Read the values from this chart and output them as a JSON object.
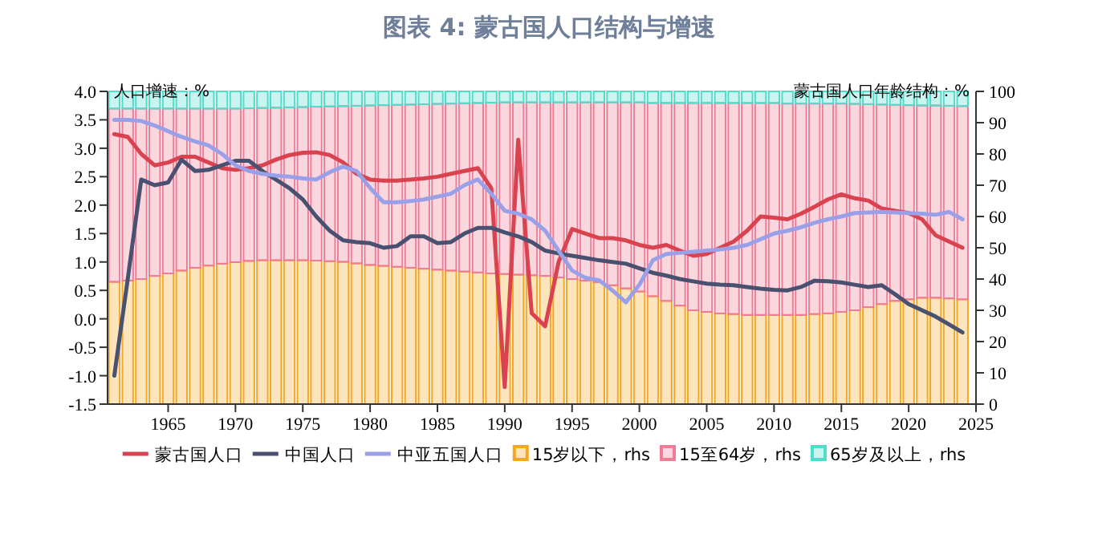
{
  "chart_data": {
    "type": "bar",
    "title": "图表 4: 蒙古国人口结构与增速",
    "ylabel": "人口增速：%",
    "y2label": "蒙古国人口年龄结构：%",
    "x": [
      1961,
      1962,
      1963,
      1964,
      1965,
      1966,
      1967,
      1968,
      1969,
      1970,
      1971,
      1972,
      1973,
      1974,
      1975,
      1976,
      1977,
      1978,
      1979,
      1980,
      1981,
      1982,
      1983,
      1984,
      1985,
      1986,
      1987,
      1988,
      1989,
      1990,
      1991,
      1992,
      1993,
      1994,
      1995,
      1996,
      1997,
      1998,
      1999,
      2000,
      2001,
      2002,
      2003,
      2004,
      2005,
      2006,
      2007,
      2008,
      2009,
      2010,
      2011,
      2012,
      2013,
      2014,
      2015,
      2016,
      2017,
      2018,
      2019,
      2020,
      2021,
      2022,
      2023,
      2024
    ],
    "xlim": [
      1960.5,
      2025
    ],
    "xticks": [
      1965,
      1970,
      1975,
      1980,
      1985,
      1990,
      1995,
      2000,
      2005,
      2010,
      2015,
      2020,
      2025
    ],
    "ylim": [
      -1.5,
      4.0
    ],
    "yticks": [
      {
        "value": -1.5,
        "label": "-1.5"
      },
      {
        "value": -1.0,
        "label": "-1.0"
      },
      {
        "value": -0.5,
        "label": "-0.5"
      },
      {
        "value": 0,
        "label": "0.0"
      },
      {
        "value": 0.5,
        "label": "0.5"
      },
      {
        "value": 1.0,
        "label": "1.0"
      },
      {
        "value": 1.5,
        "label": "1.5"
      },
      {
        "value": 2.0,
        "label": "2.0"
      },
      {
        "value": 2.5,
        "label": "2.5"
      },
      {
        "value": 3.0,
        "label": "3.0"
      },
      {
        "value": 3.5,
        "label": "3.5"
      },
      {
        "value": 4.0,
        "label": "4.0"
      }
    ],
    "y2lim": [
      0,
      100
    ],
    "y2ticks": [
      0,
      10,
      20,
      30,
      40,
      50,
      60,
      70,
      80,
      90,
      100
    ],
    "stacked": true,
    "legend": "bottom",
    "series": [
      {
        "name": "蒙古国人口",
        "type": "line",
        "axis": "y",
        "color": "#d9434f",
        "values": [
          3.25,
          3.2,
          2.9,
          2.7,
          2.75,
          2.85,
          2.85,
          2.75,
          2.65,
          2.62,
          2.65,
          2.7,
          2.8,
          2.88,
          2.92,
          2.93,
          2.88,
          2.75,
          2.55,
          2.45,
          2.43,
          2.43,
          2.45,
          2.47,
          2.5,
          2.55,
          2.6,
          2.65,
          2.3,
          -1.2,
          3.15,
          0.1,
          -0.13,
          1.0,
          1.58,
          1.5,
          1.42,
          1.42,
          1.38,
          1.3,
          1.25,
          1.3,
          1.2,
          1.11,
          1.14,
          1.25,
          1.36,
          1.55,
          1.8,
          1.78,
          1.75,
          1.85,
          1.97,
          2.1,
          2.19,
          2.12,
          2.08,
          1.94,
          1.9,
          1.86,
          1.75,
          1.47,
          1.36,
          1.25
        ]
      },
      {
        "name": "中国人口",
        "type": "line",
        "axis": "y",
        "color": "#4a5170",
        "values": [
          -1.0,
          0.7,
          2.45,
          2.35,
          2.4,
          2.8,
          2.6,
          2.62,
          2.7,
          2.78,
          2.78,
          2.6,
          2.45,
          2.3,
          2.1,
          1.8,
          1.55,
          1.38,
          1.35,
          1.33,
          1.25,
          1.28,
          1.45,
          1.45,
          1.33,
          1.35,
          1.5,
          1.6,
          1.6,
          1.52,
          1.45,
          1.35,
          1.2,
          1.15,
          1.11,
          1.07,
          1.03,
          1.0,
          0.97,
          0.89,
          0.81,
          0.76,
          0.7,
          0.66,
          0.62,
          0.6,
          0.59,
          0.56,
          0.53,
          0.51,
          0.5,
          0.56,
          0.67,
          0.66,
          0.64,
          0.6,
          0.56,
          0.59,
          0.43,
          0.26,
          0.15,
          0.04,
          -0.1,
          -0.24
        ]
      },
      {
        "name": "中亚五国人口",
        "type": "line",
        "axis": "y",
        "color": "#9aa0e8",
        "values": [
          3.5,
          3.5,
          3.48,
          3.4,
          3.3,
          3.2,
          3.12,
          3.05,
          2.9,
          2.7,
          2.6,
          2.55,
          2.52,
          2.5,
          2.47,
          2.45,
          2.58,
          2.68,
          2.6,
          2.3,
          2.05,
          2.05,
          2.07,
          2.1,
          2.15,
          2.2,
          2.35,
          2.45,
          2.2,
          1.9,
          1.85,
          1.75,
          1.55,
          1.2,
          0.85,
          0.72,
          0.68,
          0.5,
          0.29,
          0.6,
          1.03,
          1.14,
          1.16,
          1.18,
          1.2,
          1.22,
          1.25,
          1.3,
          1.4,
          1.5,
          1.55,
          1.61,
          1.69,
          1.75,
          1.8,
          1.86,
          1.87,
          1.88,
          1.87,
          1.86,
          1.85,
          1.83,
          1.88,
          1.75
        ]
      },
      {
        "name": "15岁以下，rhs",
        "axis": "y2",
        "color": "#f5a623",
        "values": [
          39.1,
          39.5,
          40,
          41,
          41.8,
          42.7,
          43.6,
          44.3,
          44.9,
          45.4,
          45.8,
          46,
          46,
          46,
          46,
          45.9,
          45.7,
          45.5,
          45,
          44.5,
          44.2,
          43.9,
          43.6,
          43.3,
          43,
          42.7,
          42.4,
          42.1,
          41.8,
          41.6,
          41.4,
          41.2,
          41,
          40.5,
          40,
          39.5,
          39,
          38,
          37,
          36,
          34.5,
          33,
          31.5,
          30,
          29.5,
          29,
          28.8,
          28.5,
          28.5,
          28.5,
          28.5,
          28.5,
          28.8,
          29,
          29.5,
          30,
          31,
          32,
          33,
          33.5,
          34,
          34,
          33.8,
          33.5
        ]
      },
      {
        "name": "15至64岁，rhs",
        "axis": "y2",
        "color": "#f07b95",
        "values": [
          55.4,
          55,
          54.5,
          53.5,
          52.7,
          51.8,
          50.9,
          50.2,
          49.6,
          49.1,
          48.8,
          48.7,
          48.8,
          48.9,
          49,
          49.2,
          49.5,
          49.8,
          50.4,
          51,
          51.4,
          51.8,
          52.2,
          52.6,
          53,
          53.4,
          53.8,
          54.2,
          54.6,
          54.9,
          55.1,
          55.3,
          55.5,
          56,
          56.5,
          57,
          57.5,
          58.5,
          59.5,
          60.5,
          61.8,
          63.3,
          64.8,
          66.3,
          66.8,
          67.3,
          67.5,
          67.8,
          67.8,
          67.8,
          67.6,
          67.6,
          67.3,
          67.1,
          66.6,
          66,
          64.9,
          63.8,
          62.7,
          62.1,
          61.5,
          61.5,
          61.6,
          61.8
        ]
      },
      {
        "name": "65岁及以上，rhs",
        "axis": "y2",
        "color": "#4fdccb",
        "values": [
          5.5,
          5.5,
          5.5,
          5.5,
          5.5,
          5.5,
          5.5,
          5.5,
          5.5,
          5.5,
          5.4,
          5.3,
          5.2,
          5.1,
          5,
          4.9,
          4.8,
          4.7,
          4.6,
          4.5,
          4.4,
          4.3,
          4.2,
          4.1,
          4,
          3.9,
          3.8,
          3.7,
          3.6,
          3.5,
          3.5,
          3.5,
          3.5,
          3.5,
          3.5,
          3.5,
          3.5,
          3.5,
          3.5,
          3.5,
          3.7,
          3.7,
          3.7,
          3.7,
          3.7,
          3.7,
          3.7,
          3.7,
          3.7,
          3.7,
          3.9,
          3.9,
          3.9,
          3.9,
          3.9,
          4,
          4.1,
          4.2,
          4.3,
          4.4,
          4.5,
          4.5,
          4.6,
          4.7
        ]
      }
    ]
  }
}
